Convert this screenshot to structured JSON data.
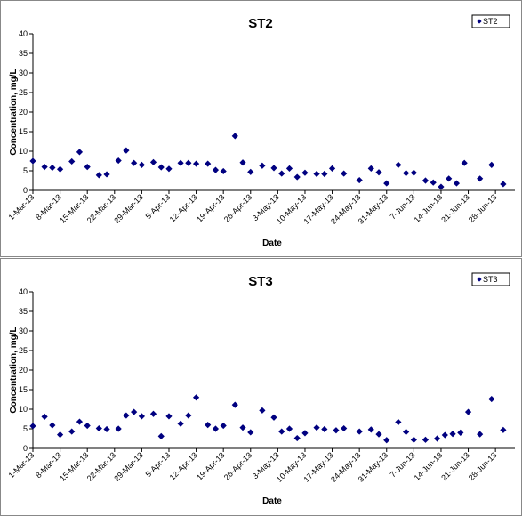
{
  "chart_data": [
    {
      "type": "scatter",
      "title": "ST2",
      "xlabel": "Date",
      "ylabel": "Concentration, mg/L",
      "ylim": [
        0,
        40
      ],
      "yticks": [
        "0",
        "5",
        "10",
        "15",
        "20",
        "25",
        "30",
        "35",
        "40"
      ],
      "xlim": [
        "2013-03-01",
        "2013-07-03"
      ],
      "xticks": [
        "1-Mar-13",
        "8-Mar-13",
        "15-Mar-13",
        "22-Mar-13",
        "29-Mar-13",
        "5-Apr-13",
        "12-Apr-13",
        "19-Apr-13",
        "26-Apr-13",
        "3-May-13",
        "10-May-13",
        "17-May-13",
        "24-May-13",
        "31-May-13",
        "7-Jun-13",
        "14-Jun-13",
        "21-Jun-13",
        "28-Jun-13"
      ],
      "xtick_dates": [
        "2013-03-01",
        "2013-03-08",
        "2013-03-15",
        "2013-03-22",
        "2013-03-29",
        "2013-04-05",
        "2013-04-12",
        "2013-04-19",
        "2013-04-26",
        "2013-05-03",
        "2013-05-10",
        "2013-05-17",
        "2013-05-24",
        "2013-05-31",
        "2013-06-07",
        "2013-06-14",
        "2013-06-21",
        "2013-06-28"
      ],
      "grid": false,
      "legend_position": "top-right",
      "marker_color": "#000080",
      "series": [
        {
          "name": "ST2",
          "points": [
            {
              "x": "2013-03-01",
              "y": 7.5
            },
            {
              "x": "2013-03-04",
              "y": 6.0
            },
            {
              "x": "2013-03-06",
              "y": 5.8
            },
            {
              "x": "2013-03-08",
              "y": 5.4
            },
            {
              "x": "2013-03-11",
              "y": 7.4
            },
            {
              "x": "2013-03-13",
              "y": 9.8
            },
            {
              "x": "2013-03-15",
              "y": 6.0
            },
            {
              "x": "2013-03-18",
              "y": 3.9
            },
            {
              "x": "2013-03-20",
              "y": 4.1
            },
            {
              "x": "2013-03-23",
              "y": 7.6
            },
            {
              "x": "2013-03-25",
              "y": 10.2
            },
            {
              "x": "2013-03-27",
              "y": 7.0
            },
            {
              "x": "2013-03-29",
              "y": 6.5
            },
            {
              "x": "2013-04-01",
              "y": 7.2
            },
            {
              "x": "2013-04-03",
              "y": 5.9
            },
            {
              "x": "2013-04-05",
              "y": 5.5
            },
            {
              "x": "2013-04-08",
              "y": 7.0
            },
            {
              "x": "2013-04-10",
              "y": 7.0
            },
            {
              "x": "2013-04-12",
              "y": 6.8
            },
            {
              "x": "2013-04-15",
              "y": 6.8
            },
            {
              "x": "2013-04-17",
              "y": 5.2
            },
            {
              "x": "2013-04-19",
              "y": 4.9
            },
            {
              "x": "2013-04-22",
              "y": 13.9
            },
            {
              "x": "2013-04-24",
              "y": 7.1
            },
            {
              "x": "2013-04-26",
              "y": 4.7
            },
            {
              "x": "2013-04-29",
              "y": 6.3
            },
            {
              "x": "2013-05-02",
              "y": 5.7
            },
            {
              "x": "2013-05-04",
              "y": 4.3
            },
            {
              "x": "2013-05-06",
              "y": 5.6
            },
            {
              "x": "2013-05-08",
              "y": 3.4
            },
            {
              "x": "2013-05-10",
              "y": 4.5
            },
            {
              "x": "2013-05-13",
              "y": 4.2
            },
            {
              "x": "2013-05-15",
              "y": 4.2
            },
            {
              "x": "2013-05-17",
              "y": 5.6
            },
            {
              "x": "2013-05-20",
              "y": 4.3
            },
            {
              "x": "2013-05-24",
              "y": 2.6
            },
            {
              "x": "2013-05-27",
              "y": 5.6
            },
            {
              "x": "2013-05-29",
              "y": 4.6
            },
            {
              "x": "2013-05-31",
              "y": 1.8
            },
            {
              "x": "2013-06-03",
              "y": 6.5
            },
            {
              "x": "2013-06-05",
              "y": 4.4
            },
            {
              "x": "2013-06-07",
              "y": 4.5
            },
            {
              "x": "2013-06-10",
              "y": 2.5
            },
            {
              "x": "2013-06-12",
              "y": 2.0
            },
            {
              "x": "2013-06-14",
              "y": 0.9
            },
            {
              "x": "2013-06-16",
              "y": 3.0
            },
            {
              "x": "2013-06-18",
              "y": 1.8
            },
            {
              "x": "2013-06-20",
              "y": 7.0
            },
            {
              "x": "2013-06-24",
              "y": 3.0
            },
            {
              "x": "2013-06-27",
              "y": 6.5
            },
            {
              "x": "2013-06-30",
              "y": 1.6
            }
          ]
        }
      ]
    },
    {
      "type": "scatter",
      "title": "ST3",
      "xlabel": "Date",
      "ylabel": "Concentration, mg/L",
      "ylim": [
        0,
        40
      ],
      "yticks": [
        "0",
        "5",
        "10",
        "15",
        "20",
        "25",
        "30",
        "35",
        "40"
      ],
      "xlim": [
        "2013-03-01",
        "2013-07-03"
      ],
      "xticks": [
        "1-Mar-13",
        "8-Mar-13",
        "15-Mar-13",
        "22-Mar-13",
        "29-Mar-13",
        "5-Apr-13",
        "12-Apr-13",
        "19-Apr-13",
        "26-Apr-13",
        "3-May-13",
        "10-May-13",
        "17-May-13",
        "24-May-13",
        "31-May-13",
        "7-Jun-13",
        "14-Jun-13",
        "21-Jun-13",
        "28-Jun-13"
      ],
      "xtick_dates": [
        "2013-03-01",
        "2013-03-08",
        "2013-03-15",
        "2013-03-22",
        "2013-03-29",
        "2013-04-05",
        "2013-04-12",
        "2013-04-19",
        "2013-04-26",
        "2013-05-03",
        "2013-05-10",
        "2013-05-17",
        "2013-05-24",
        "2013-05-31",
        "2013-06-07",
        "2013-06-14",
        "2013-06-21",
        "2013-06-28"
      ],
      "grid": false,
      "legend_position": "top-right",
      "marker_color": "#000080",
      "series": [
        {
          "name": "ST3",
          "points": [
            {
              "x": "2013-03-01",
              "y": 5.7
            },
            {
              "x": "2013-03-04",
              "y": 8.1
            },
            {
              "x": "2013-03-06",
              "y": 5.9
            },
            {
              "x": "2013-03-08",
              "y": 3.5
            },
            {
              "x": "2013-03-11",
              "y": 4.3
            },
            {
              "x": "2013-03-13",
              "y": 6.8
            },
            {
              "x": "2013-03-15",
              "y": 5.8
            },
            {
              "x": "2013-03-18",
              "y": 5.1
            },
            {
              "x": "2013-03-20",
              "y": 4.9
            },
            {
              "x": "2013-03-23",
              "y": 5.0
            },
            {
              "x": "2013-03-25",
              "y": 8.4
            },
            {
              "x": "2013-03-27",
              "y": 9.3
            },
            {
              "x": "2013-03-29",
              "y": 8.2
            },
            {
              "x": "2013-04-01",
              "y": 8.8
            },
            {
              "x": "2013-04-03",
              "y": 3.1
            },
            {
              "x": "2013-04-05",
              "y": 8.2
            },
            {
              "x": "2013-04-08",
              "y": 6.3
            },
            {
              "x": "2013-04-10",
              "y": 8.4
            },
            {
              "x": "2013-04-12",
              "y": 13.0
            },
            {
              "x": "2013-04-15",
              "y": 6.0
            },
            {
              "x": "2013-04-17",
              "y": 5.0
            },
            {
              "x": "2013-04-19",
              "y": 5.8
            },
            {
              "x": "2013-04-22",
              "y": 11.1
            },
            {
              "x": "2013-04-24",
              "y": 5.3
            },
            {
              "x": "2013-04-26",
              "y": 4.1
            },
            {
              "x": "2013-04-29",
              "y": 9.7
            },
            {
              "x": "2013-05-02",
              "y": 7.9
            },
            {
              "x": "2013-05-04",
              "y": 4.3
            },
            {
              "x": "2013-05-06",
              "y": 5.0
            },
            {
              "x": "2013-05-08",
              "y": 2.6
            },
            {
              "x": "2013-05-10",
              "y": 3.9
            },
            {
              "x": "2013-05-13",
              "y": 5.3
            },
            {
              "x": "2013-05-15",
              "y": 4.9
            },
            {
              "x": "2013-05-18",
              "y": 4.6
            },
            {
              "x": "2013-05-20",
              "y": 5.1
            },
            {
              "x": "2013-05-24",
              "y": 4.3
            },
            {
              "x": "2013-05-27",
              "y": 4.8
            },
            {
              "x": "2013-05-29",
              "y": 3.6
            },
            {
              "x": "2013-05-31",
              "y": 2.1
            },
            {
              "x": "2013-06-03",
              "y": 6.7
            },
            {
              "x": "2013-06-05",
              "y": 4.2
            },
            {
              "x": "2013-06-07",
              "y": 2.2
            },
            {
              "x": "2013-06-10",
              "y": 2.2
            },
            {
              "x": "2013-06-13",
              "y": 2.5
            },
            {
              "x": "2013-06-15",
              "y": 3.4
            },
            {
              "x": "2013-06-17",
              "y": 3.7
            },
            {
              "x": "2013-06-19",
              "y": 4.0
            },
            {
              "x": "2013-06-21",
              "y": 9.3
            },
            {
              "x": "2013-06-24",
              "y": 3.6
            },
            {
              "x": "2013-06-27",
              "y": 12.6
            },
            {
              "x": "2013-06-30",
              "y": 4.7
            }
          ]
        }
      ]
    }
  ]
}
